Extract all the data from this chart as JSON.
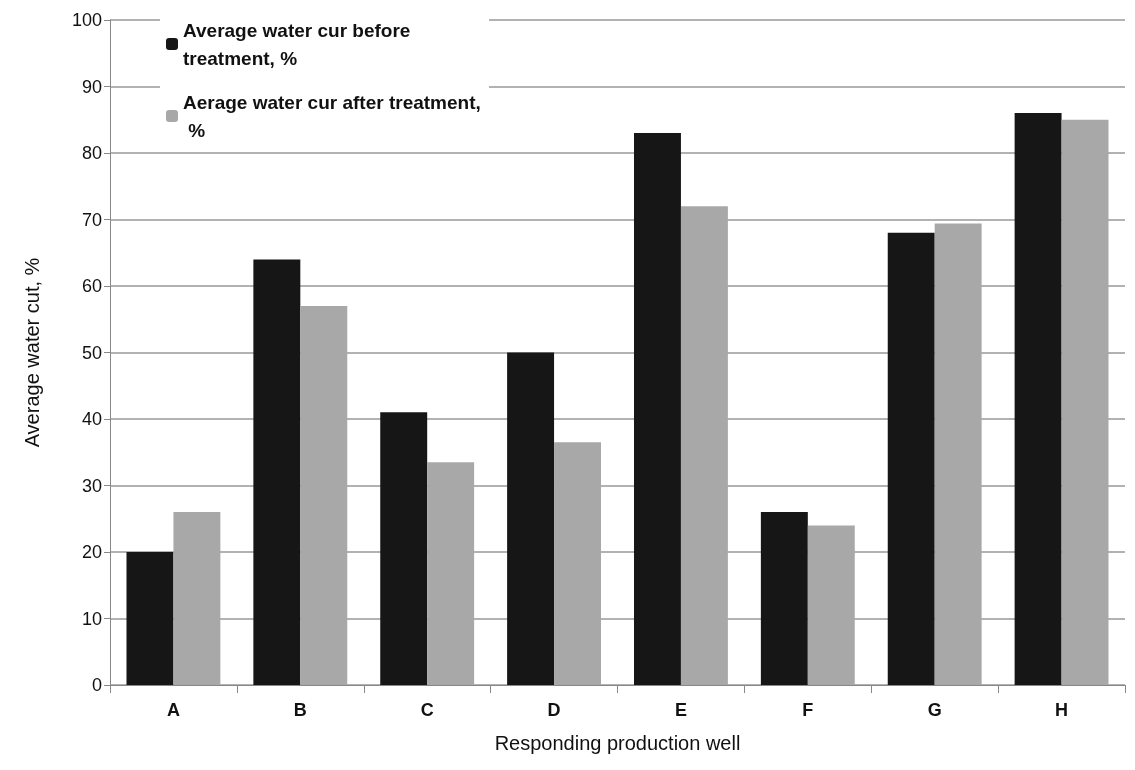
{
  "chart_data": {
    "type": "bar",
    "xlabel": "Responding production well",
    "ylabel": "Average water cut, %",
    "categories": [
      "A",
      "B",
      "C",
      "D",
      "E",
      "F",
      "G",
      "H"
    ],
    "series": [
      {
        "name": "Average water cur before treatment, %",
        "color": "#161616",
        "values": [
          20,
          64,
          41,
          50,
          83,
          26,
          68,
          86
        ]
      },
      {
        "name": "Aerage water cur after treatment, %",
        "color": "#a8a8a8",
        "values": [
          26,
          57,
          33.5,
          36.5,
          72,
          24,
          69.4,
          85
        ]
      }
    ],
    "ylim": [
      0,
      100
    ],
    "yticks": [
      0,
      10,
      20,
      30,
      40,
      50,
      60,
      70,
      80,
      90,
      100
    ],
    "grid": "y",
    "legend": "top left"
  }
}
